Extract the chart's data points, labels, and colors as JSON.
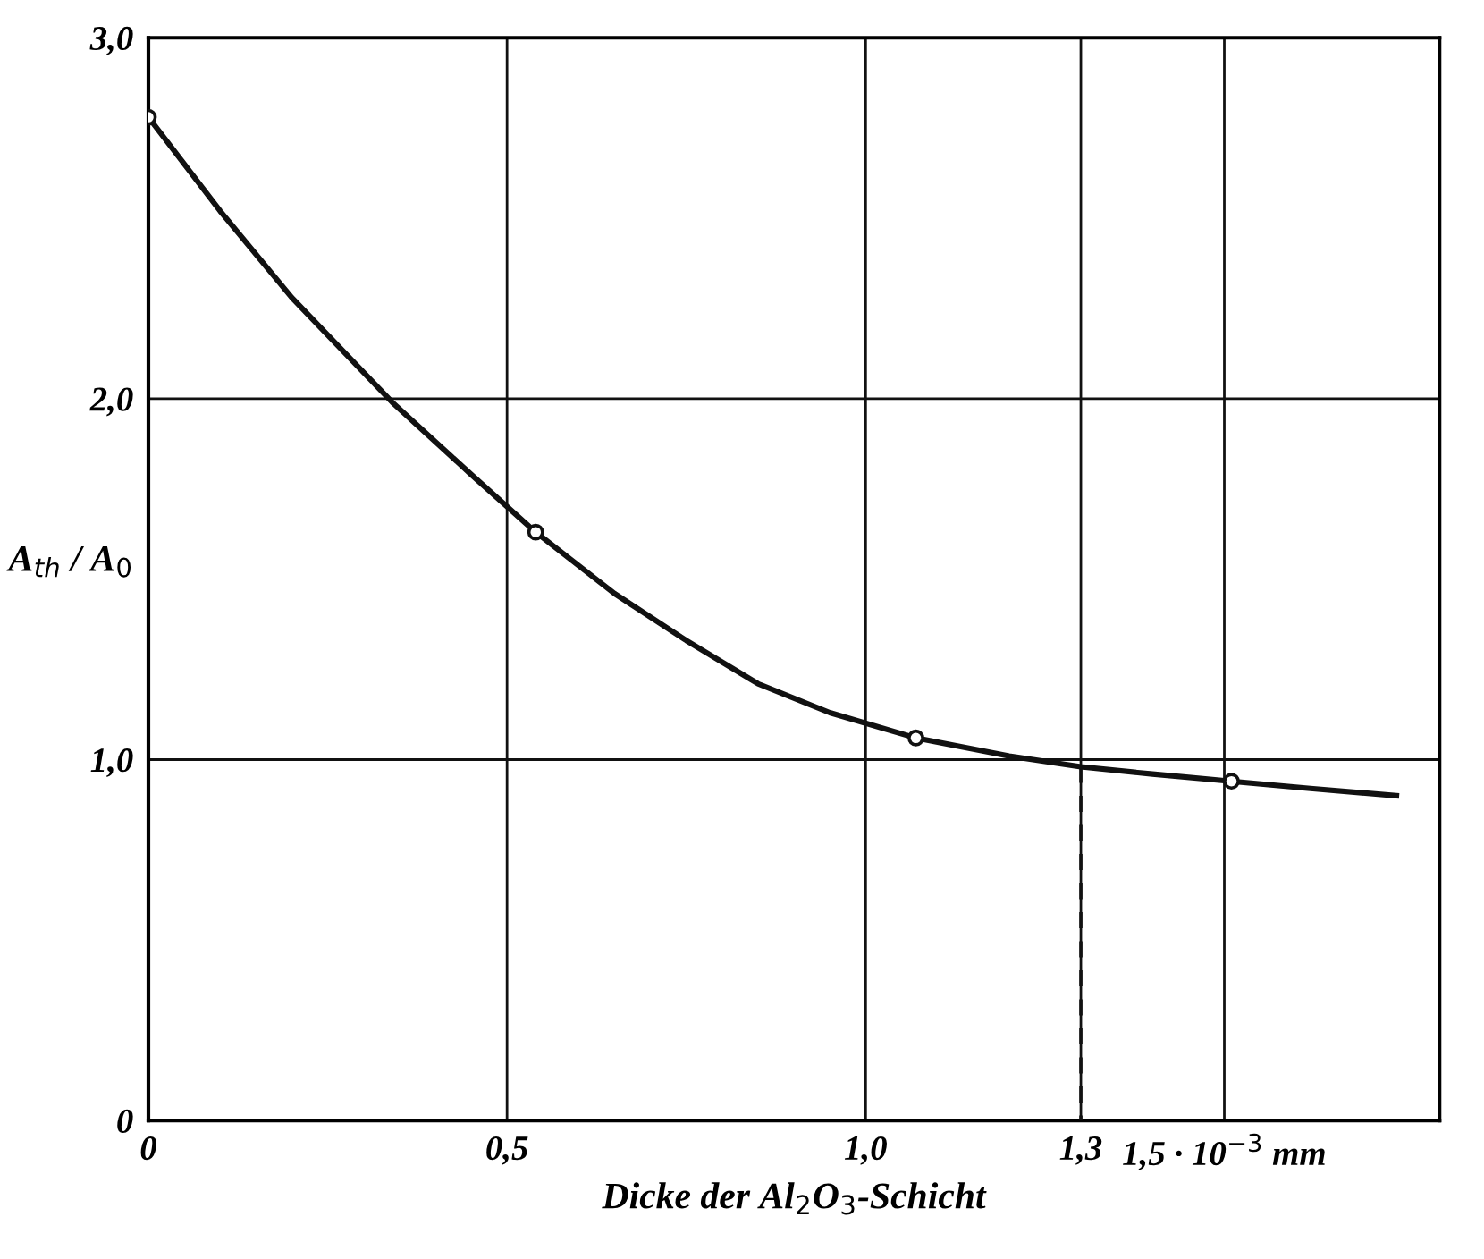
{
  "chart_data": {
    "type": "line",
    "xlabel": "Dicke der Al$_{2}$O$_{3}$-Schicht",
    "ylabel": "A$_{th}$ / A$_{0}$",
    "xlim": [
      0,
      1.8
    ],
    "ylim": [
      0,
      3.0
    ],
    "xticks": [
      {
        "value": 0,
        "label": "0"
      },
      {
        "value": 0.5,
        "label": "0,5"
      },
      {
        "value": 1.0,
        "label": "1,0"
      },
      {
        "value": 1.3,
        "label": "1,3"
      },
      {
        "value": 1.5,
        "label": "1,5 · 10$^{−3}$ mm"
      }
    ],
    "yticks": [
      {
        "value": 0,
        "label": "0"
      },
      {
        "value": 1.0,
        "label": "1,0"
      },
      {
        "value": 2.0,
        "label": "2,0"
      },
      {
        "value": 3.0,
        "label": "3,0"
      }
    ],
    "grid": true,
    "series": [
      {
        "color": "#111111",
        "marker": "none",
        "line_style": "solid",
        "x": [
          0,
          0.1,
          0.2,
          0.34,
          0.45,
          0.54,
          0.65,
          0.75,
          0.85,
          0.95,
          1.07,
          1.2,
          1.3,
          1.4,
          1.51,
          1.62,
          1.74
        ],
        "values": [
          2.78,
          2.52,
          2.28,
          1.99,
          1.79,
          1.63,
          1.46,
          1.33,
          1.21,
          1.13,
          1.06,
          1.01,
          0.98,
          0.96,
          0.94,
          0.92,
          0.9
        ]
      },
      {
        "type": "scatter",
        "color": "#111111",
        "marker": "circle",
        "x": [
          0,
          0.54,
          1.07,
          1.51
        ],
        "values": [
          2.78,
          1.63,
          1.06,
          0.94
        ]
      },
      {
        "type": "line",
        "color": "#111111",
        "marker": "none",
        "line_style": "dashed",
        "x": [
          1.3,
          1.3
        ],
        "values": [
          0.98,
          0
        ]
      }
    ]
  }
}
